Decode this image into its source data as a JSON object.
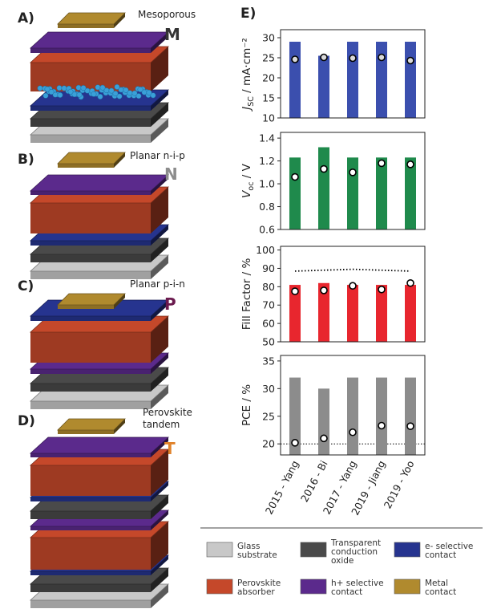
{
  "diagram": {
    "panels": [
      {
        "letter": "A)",
        "name": [
          "Mesoporous"
        ],
        "code": "M",
        "code_color": "#333333"
      },
      {
        "letter": "B)",
        "name": [
          "Planar n-i-p"
        ],
        "code": "N",
        "code_color": "#8c8c8c"
      },
      {
        "letter": "C)",
        "name": [
          "Planar p-i-n"
        ],
        "code": "P",
        "code_color": "#6b1a4e"
      },
      {
        "letter": "D)",
        "name": [
          "Perovskite",
          "tandem"
        ],
        "code": "T",
        "code_color": "#e0822a"
      }
    ]
  },
  "figure_label": "E)",
  "chart_data": [
    {
      "type": "bar",
      "ylabel": {
        "main": "J",
        "sub": "SC",
        "unit": " / mA·cm⁻²"
      },
      "ylim": [
        10,
        32
      ],
      "yticks": [
        10,
        15,
        20,
        25,
        30
      ],
      "series": [
        {
          "type": "bar",
          "color": "#3b4fae",
          "values": [
            29,
            25.5,
            29,
            29,
            29
          ]
        },
        {
          "type": "scatter",
          "color": "#d9d9d9",
          "values": [
            24.6,
            25.1,
            24.9,
            25.1,
            24.3
          ]
        }
      ]
    },
    {
      "type": "bar",
      "ylabel": {
        "main": "V",
        "sub": "oc",
        "unit": " / V"
      },
      "ylim": [
        0.6,
        1.45
      ],
      "yticks": [
        0.6,
        0.8,
        {
          "value": 1,
          "label": "1.0"
        },
        1.2,
        1.4
      ],
      "series": [
        {
          "type": "bar",
          "color": "#1f8a4c",
          "values": [
            1.23,
            1.32,
            1.23,
            1.23,
            1.23
          ]
        },
        {
          "type": "scatter",
          "color": "#ffffff",
          "values": [
            1.06,
            1.13,
            1.1,
            1.18,
            1.17
          ]
        }
      ]
    },
    {
      "type": "bar",
      "ylabel": {
        "main": "Fill Factor / %"
      },
      "ylim": [
        50,
        102
      ],
      "yticks": [
        50,
        60,
        70,
        80,
        90,
        100
      ],
      "series": [
        {
          "type": "bar",
          "color": "#e8262e",
          "values": [
            81,
            82,
            81,
            81,
            81
          ]
        },
        {
          "type": "scatter",
          "color": "#ffffff",
          "values": [
            77.5,
            78,
            80.5,
            78.5,
            82
          ]
        },
        {
          "type": "line",
          "color": "#000000",
          "dash": "dotted",
          "values": [
            88.5,
            89,
            89.5,
            89,
            88.5
          ]
        }
      ]
    },
    {
      "type": "bar",
      "ylabel": {
        "main": "PCE / %"
      },
      "ylim": [
        18,
        36
      ],
      "yticks": [
        20,
        25,
        30,
        35
      ],
      "hlines": [
        20
      ],
      "categories": [
        "2015 - Yang",
        "2016 - Bi",
        "2017 - Yang",
        "2019 - Jiang",
        "2019 - Yoo"
      ],
      "series": [
        {
          "type": "bar",
          "color": "#8c8c8c",
          "values": [
            32,
            30,
            32,
            32,
            32
          ]
        },
        {
          "type": "scatter",
          "color": "#ffffff",
          "values": [
            20.2,
            21,
            22.1,
            23.3,
            23.2
          ]
        }
      ]
    }
  ],
  "legend": [
    {
      "label": [
        "Glass",
        "substrate"
      ],
      "color": "#c8c8c8"
    },
    {
      "label": [
        "Transparent",
        "conduction",
        "oxide"
      ],
      "color": "#4a4a4a"
    },
    {
      "label": [
        "e- selective",
        "contact"
      ],
      "color": "#26348f"
    },
    {
      "label": [
        "Perovskite",
        "absorber"
      ],
      "color": "#c5482a"
    },
    {
      "label": [
        "h+ selective",
        "contact"
      ],
      "color": "#5b2a8c"
    },
    {
      "label": [
        "Metal",
        "contact"
      ],
      "color": "#b08a2e"
    }
  ]
}
